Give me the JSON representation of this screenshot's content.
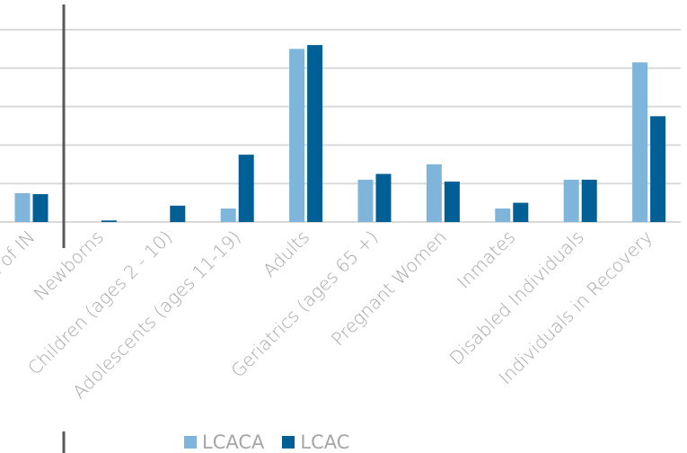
{
  "chart_data": {
    "type": "bar",
    "categories": [
      "…e of IN",
      "Newborns",
      "Children (ages 2 - 10)",
      "Adolescents (ages 11-19)",
      "Adults",
      "Geriatrics (ages 65 +)",
      "Pregnant Women",
      "Inmates",
      "Disabled Individuals",
      "Individuals in Recovery"
    ],
    "series": [
      {
        "name": "LCACA",
        "color": "#7fb5da",
        "values": [
          15,
          0,
          0,
          7,
          90,
          22,
          30,
          7,
          22,
          83
        ]
      },
      {
        "name": "LCAC",
        "color": "#006096",
        "values": [
          14.5,
          0.8,
          8.5,
          35,
          92,
          25,
          21,
          10,
          22,
          55
        ]
      }
    ],
    "ylim": [
      0,
      100
    ],
    "grid": true,
    "legend_position": "bottom"
  }
}
